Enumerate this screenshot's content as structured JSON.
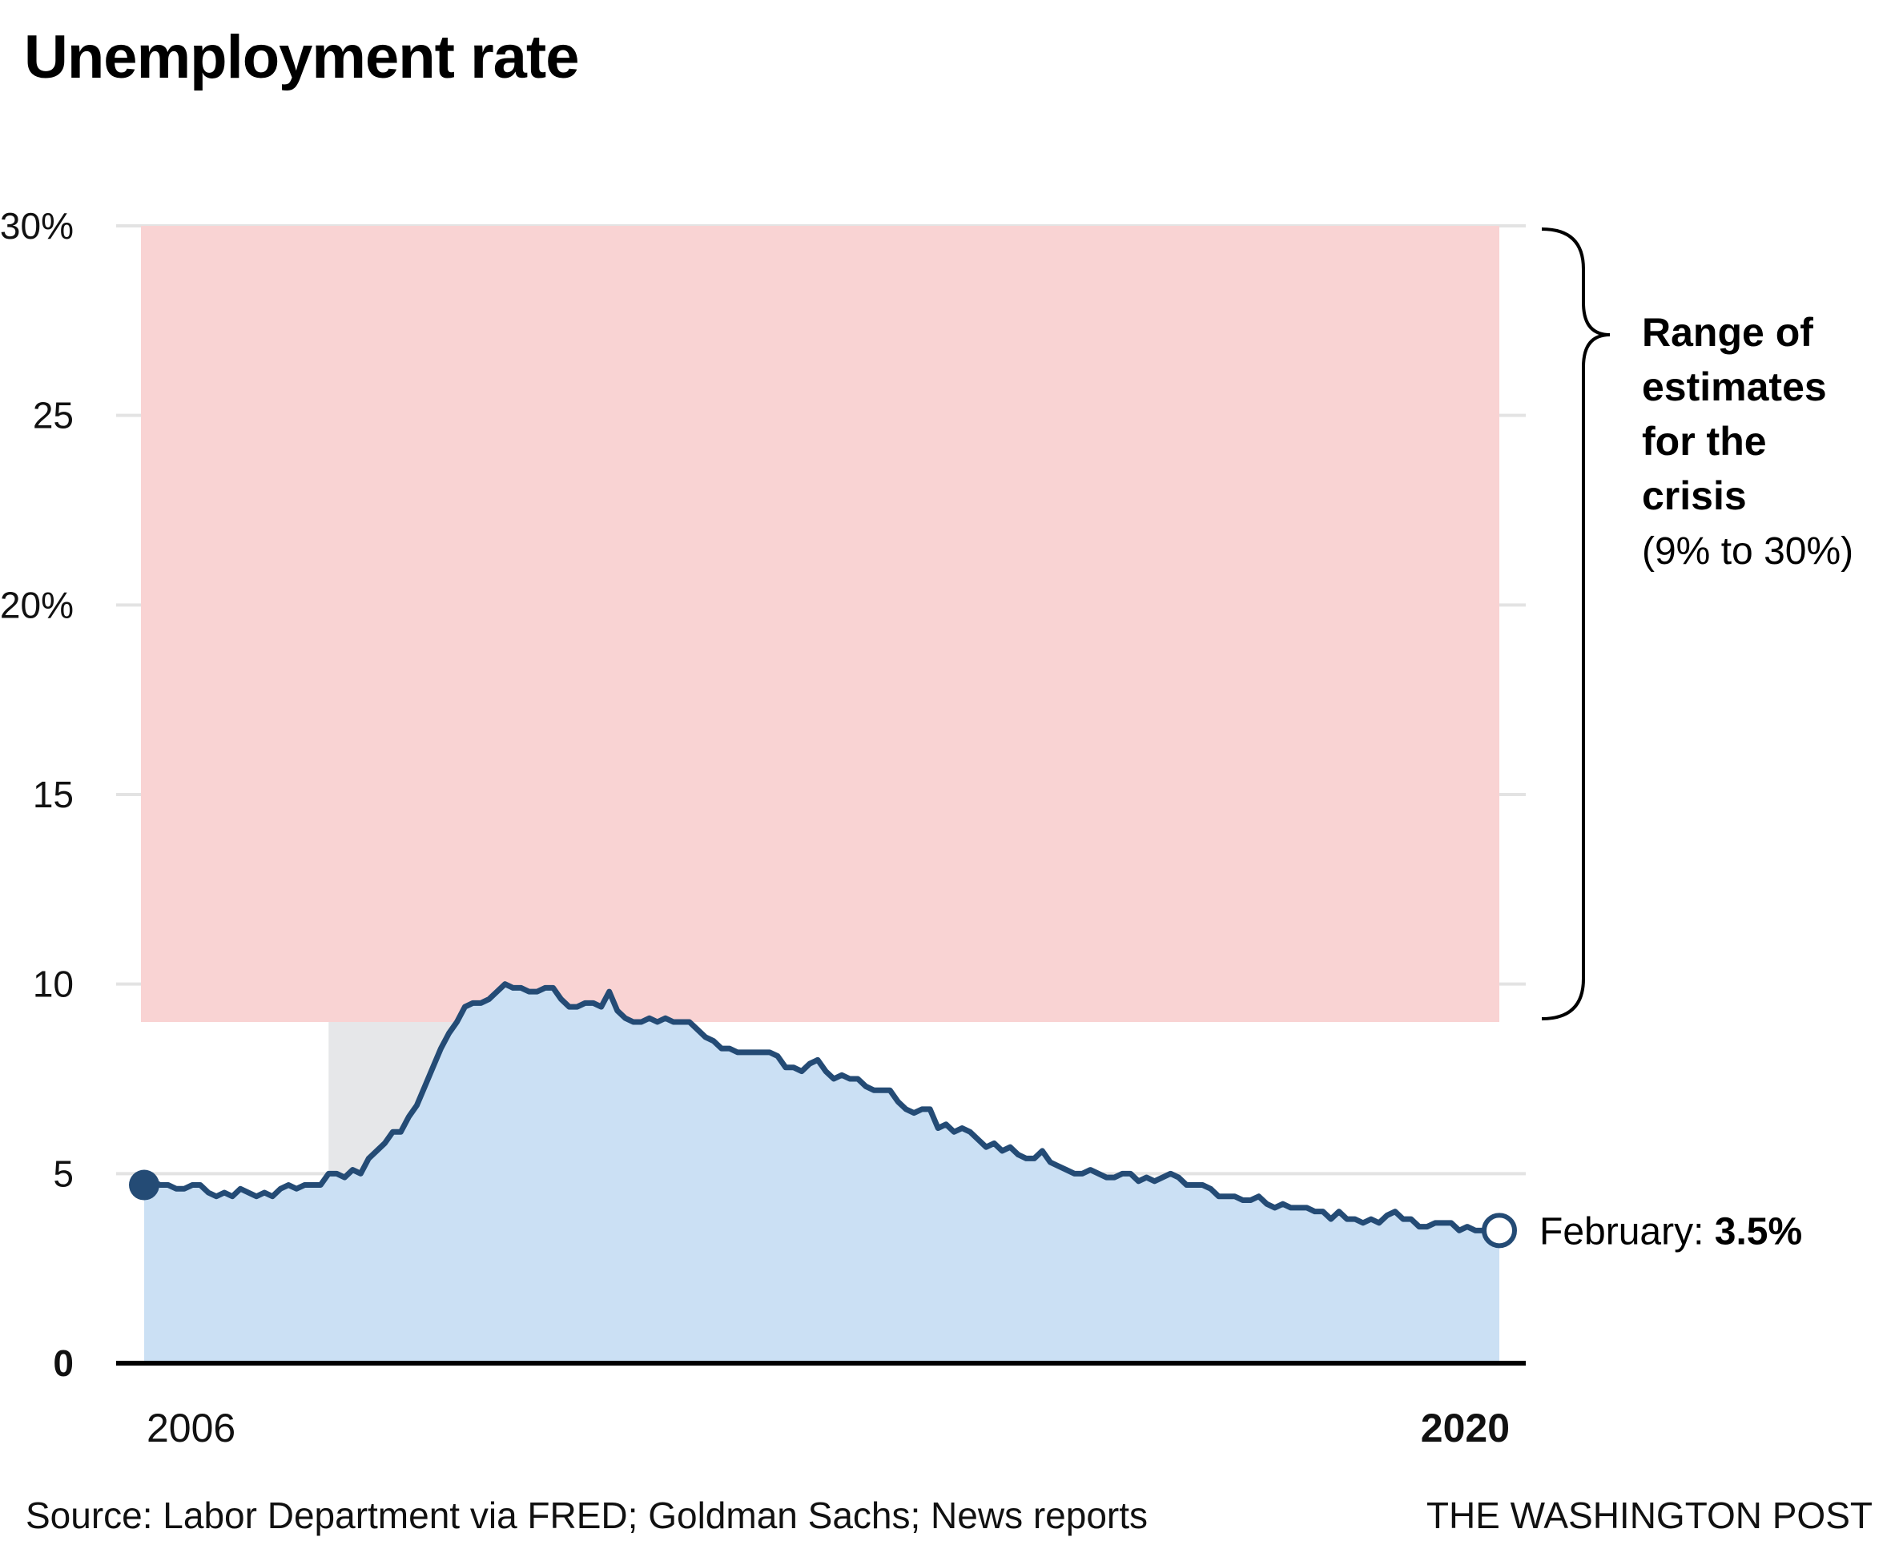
{
  "title": "Unemployment rate",
  "colors": {
    "line": "#244b75",
    "area": "#cbe0f4",
    "range_box": "#f9d3d3",
    "recession": "#e6e7e9",
    "grid": "#e3e3e3",
    "axis": "#000000"
  },
  "chart_data": {
    "type": "area",
    "title": "Unemployment rate",
    "xlabel": "",
    "ylabel": "",
    "ylim": [
      0,
      30
    ],
    "xlim": [
      "2006-01",
      "2020-02"
    ],
    "grid": true,
    "y_ticks": [
      {
        "value": 0,
        "label": "0",
        "bold": true
      },
      {
        "value": 5,
        "label": "5",
        "bold": false
      },
      {
        "value": 10,
        "label": "10",
        "bold": false
      },
      {
        "value": 15,
        "label": "15",
        "bold": false
      },
      {
        "value": 20,
        "label": "20%",
        "bold": false
      },
      {
        "value": 25,
        "label": "25",
        "bold": false
      },
      {
        "value": 30,
        "label": "30%",
        "bold": false
      }
    ],
    "x_ticks": [
      {
        "label": "2006",
        "bold": false,
        "anchor": "start"
      },
      {
        "label": "2020",
        "bold": true,
        "anchor": "end"
      }
    ],
    "series": [
      {
        "name": "Unemployment rate (monthly, %)",
        "start": "2006-01",
        "frequency": "monthly",
        "values": [
          4.7,
          4.8,
          4.7,
          4.7,
          4.6,
          4.6,
          4.7,
          4.7,
          4.5,
          4.4,
          4.5,
          4.4,
          4.6,
          4.5,
          4.4,
          4.5,
          4.4,
          4.6,
          4.7,
          4.6,
          4.7,
          4.7,
          4.7,
          5.0,
          5.0,
          4.9,
          5.1,
          5.0,
          5.4,
          5.6,
          5.8,
          6.1,
          6.1,
          6.5,
          6.8,
          7.3,
          7.8,
          8.3,
          8.7,
          9.0,
          9.4,
          9.5,
          9.5,
          9.6,
          9.8,
          10.0,
          9.9,
          9.9,
          9.8,
          9.8,
          9.9,
          9.9,
          9.6,
          9.4,
          9.4,
          9.5,
          9.5,
          9.4,
          9.8,
          9.3,
          9.1,
          9.0,
          9.0,
          9.1,
          9.0,
          9.1,
          9.0,
          9.0,
          9.0,
          8.8,
          8.6,
          8.5,
          8.3,
          8.3,
          8.2,
          8.2,
          8.2,
          8.2,
          8.2,
          8.1,
          7.8,
          7.8,
          7.7,
          7.9,
          8.0,
          7.7,
          7.5,
          7.6,
          7.5,
          7.5,
          7.3,
          7.2,
          7.2,
          7.2,
          6.9,
          6.7,
          6.6,
          6.7,
          6.7,
          6.2,
          6.3,
          6.1,
          6.2,
          6.1,
          5.9,
          5.7,
          5.8,
          5.6,
          5.7,
          5.5,
          5.4,
          5.4,
          5.6,
          5.3,
          5.2,
          5.1,
          5.0,
          5.0,
          5.1,
          5.0,
          4.9,
          4.9,
          5.0,
          5.0,
          4.8,
          4.9,
          4.8,
          4.9,
          5.0,
          4.9,
          4.7,
          4.7,
          4.7,
          4.6,
          4.4,
          4.4,
          4.4,
          4.3,
          4.3,
          4.4,
          4.2,
          4.1,
          4.2,
          4.1,
          4.1,
          4.1,
          4.0,
          4.0,
          3.8,
          4.0,
          3.8,
          3.8,
          3.7,
          3.8,
          3.7,
          3.9,
          4.0,
          3.8,
          3.8,
          3.6,
          3.6,
          3.7,
          3.7,
          3.7,
          3.5,
          3.6,
          3.5,
          3.5,
          3.6,
          3.5
        ]
      }
    ],
    "shaded_regions": [
      {
        "name": "Recession",
        "x_start": "2007-12",
        "x_end": "2009-06"
      },
      {
        "name": "Range of estimates for the crisis",
        "y_start": 9,
        "y_end": 30
      }
    ],
    "markers": [
      {
        "name": "start-point",
        "x": "2006-01",
        "y": 4.7,
        "style": "filled"
      },
      {
        "name": "end-point",
        "x": "2020-02",
        "y": 3.5,
        "style": "hollow"
      }
    ],
    "annotations": [
      {
        "text_lines_bold": [
          "Range of",
          "estimates",
          "for the",
          "crisis"
        ],
        "text_regular": "(9% to 30%)"
      },
      {
        "label": "February: ",
        "value": "3.5%"
      }
    ]
  },
  "footer": {
    "source": "Source: Labor Department via FRED; Goldman Sachs; News reports",
    "credit": "THE WASHINGTON POST"
  }
}
